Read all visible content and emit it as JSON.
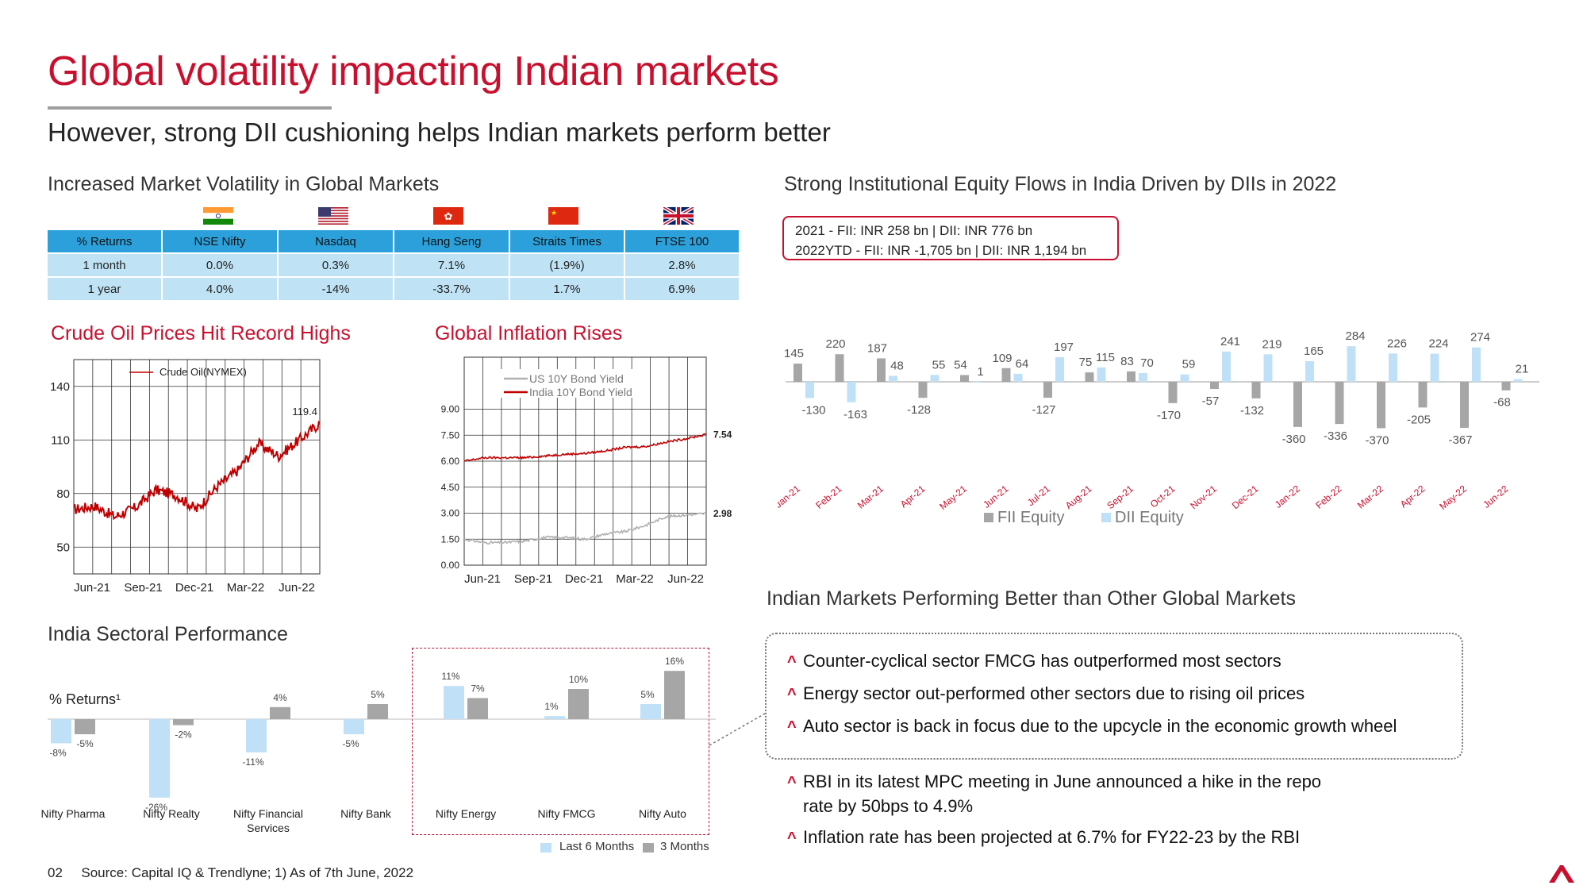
{
  "header": {
    "title": "Global volatility impacting Indian markets",
    "subtitle": "However, strong DII cushioning helps Indian markets perform better"
  },
  "volatility": {
    "heading": "Increased Market Volatility in Global Markets",
    "columns": [
      "% Returns",
      "NSE Nifty",
      "Nasdaq",
      "Hang Seng",
      "Straits Times",
      "FTSE 100"
    ],
    "flags": [
      "india-flag-icon",
      "us-flag-icon",
      "hong-kong-flag-icon",
      "china-flag-icon",
      "uk-flag-icon"
    ],
    "rows": [
      [
        "1 month",
        "0.0%",
        "0.3%",
        "7.1%",
        "(1.9%)",
        "2.8%"
      ],
      [
        "1 year",
        "4.0%",
        "-14%",
        "-33.7%",
        "1.7%",
        "6.9%"
      ]
    ]
  },
  "crude": {
    "heading": "Crude Oil Prices Hit Record Highs",
    "legend": "Crude Oil(NYMEX)",
    "end_label": "119.4",
    "yticks": [
      "140",
      "110",
      "80",
      "50"
    ],
    "xticks": [
      "Jun-21",
      "Sep-21",
      "Dec-21",
      "Mar-22",
      "Jun-22"
    ],
    "color": "#c00000"
  },
  "inflation": {
    "heading": "Global Inflation Rises",
    "legend": [
      "US 10Y Bond Yield",
      "India 10Y Bond Yield"
    ],
    "yticks": [
      "9.00",
      "7.50",
      "6.00",
      "4.50",
      "3.00",
      "1.50",
      "0.00"
    ],
    "xticks": [
      "Jun-21",
      "Sep-21",
      "Dec-21",
      "Mar-22",
      "Jun-22"
    ],
    "india_end": "7.54",
    "us_end": "2.98"
  },
  "flows": {
    "heading": "Strong Institutional Equity Flows in India Driven by DIIs in 2022",
    "box_line1": "2021 - FII: INR 258 bn | DII: INR 776 bn",
    "box_line2": "2022YTD - FII: INR -1,705 bn | DII: INR 1,194 bn",
    "legend_fii": "FII Equity",
    "legend_dii": "DII Equity",
    "fii_color": "#a6a6a6",
    "dii_color": "#bfe0f7"
  },
  "sectoral": {
    "heading": "India Sectoral Performance",
    "returns_label": "% Returns¹",
    "legend_6m": "Last 6 Months",
    "legend_3m": "3 Months"
  },
  "markets": {
    "heading": "Indian Markets Performing Better than Other Global Markets",
    "boxed_bullets": [
      "Counter-cyclical sector FMCG has outperformed most sectors",
      "Energy sector out-performed other sectors due to rising oil prices",
      "Auto sector is back in focus due to the upcycle in the economic growth wheel"
    ],
    "bullets": [
      {
        "line1": "RBI in its latest MPC meeting in June announced a hike in the repo",
        "line2": "rate by 50bps to 4.9%"
      },
      {
        "line1": "Inflation rate has been projected at 6.7% for FY22-23 by the RBI",
        "line2": ""
      }
    ]
  },
  "footer": {
    "page": "02",
    "source": "Source: Capital IQ & Trendlyne; 1) As of 7th June, 2022"
  },
  "chart_data": [
    {
      "type": "bar",
      "title": "Strong Institutional Equity Flows in India Driven by DIIs in 2022",
      "categories": [
        "Jan-21",
        "Feb-21",
        "Mar-21",
        "Apr-21",
        "May-21",
        "Jun-21",
        "Jul-21",
        "Aug-21",
        "Sep-21",
        "Oct-21",
        "Nov-21",
        "Dec-21",
        "Jan-22",
        "Feb-22",
        "Mar-22",
        "Apr-22",
        "May-22",
        "Jun-22"
      ],
      "series": [
        {
          "name": "FII Equity",
          "values": [
            145,
            220,
            187,
            -128,
            54,
            109,
            -127,
            75,
            83,
            -170,
            -57,
            -132,
            -360,
            -336,
            -370,
            -205,
            -367,
            -68
          ]
        },
        {
          "name": "DII Equity",
          "values": [
            -130,
            -163,
            48,
            55,
            1,
            64,
            197,
            115,
            70,
            59,
            241,
            219,
            165,
            284,
            226,
            224,
            274,
            21
          ]
        }
      ],
      "legend": "bottom"
    },
    {
      "type": "bar",
      "title": "India Sectoral Performance",
      "ylabel": "% Returns¹",
      "categories": [
        "Nifty Pharma",
        "Nifty Realty",
        "Nifty Financial Services",
        "Nifty Bank",
        "Nifty Energy",
        "Nifty FMCG",
        "Nifty Auto"
      ],
      "series": [
        {
          "name": "Last 6 Months",
          "values": [
            -8,
            -26,
            -11,
            -5,
            11,
            1,
            5
          ]
        },
        {
          "name": "3 Months",
          "values": [
            -5,
            -2,
            4,
            5,
            7,
            10,
            16
          ]
        }
      ],
      "labels_6m": [
        "-8%",
        "-26%",
        "-11%",
        "-5%",
        "11%",
        "1%",
        "5%"
      ],
      "labels_3m": [
        "-5%",
        "-2%",
        "4%",
        "5%",
        "7%",
        "10%",
        "16%"
      ],
      "highlighted_categories": [
        "Nifty Energy",
        "Nifty FMCG",
        "Nifty Auto"
      ],
      "legend": "bottom-right"
    },
    {
      "type": "line",
      "title": "Crude Oil Prices Hit Record Highs",
      "series": [
        {
          "name": "Crude Oil(NYMEX)",
          "x": [
            "Jun-21",
            "Jul-21",
            "Aug-21",
            "Sep-21",
            "Oct-21",
            "Nov-21",
            "Dec-21",
            "Jan-22",
            "Feb-22",
            "Mar-22",
            "Apr-22",
            "May-22",
            "Jun-22"
          ],
          "values": [
            71,
            73,
            67,
            72,
            82,
            79,
            71,
            84,
            93,
            108,
            101,
            110,
            119.4
          ]
        }
      ],
      "ylim": [
        35,
        155
      ],
      "yticks": [
        50,
        80,
        110,
        140
      ],
      "grid": true
    },
    {
      "type": "line",
      "title": "Global Inflation Rises",
      "series": [
        {
          "name": "US 10Y Bond Yield",
          "x": [
            "Jun-21",
            "Jul-21",
            "Aug-21",
            "Sep-21",
            "Oct-21",
            "Nov-21",
            "Dec-21",
            "Jan-22",
            "Feb-22",
            "Mar-22",
            "Apr-22",
            "May-22",
            "Jun-22"
          ],
          "values": [
            1.5,
            1.3,
            1.3,
            1.4,
            1.6,
            1.6,
            1.5,
            1.8,
            1.95,
            2.3,
            2.8,
            2.9,
            2.98
          ]
        },
        {
          "name": "India 10Y Bond Yield",
          "x": [
            "Jun-21",
            "Jul-21",
            "Aug-21",
            "Sep-21",
            "Oct-21",
            "Nov-21",
            "Dec-21",
            "Jan-22",
            "Feb-22",
            "Mar-22",
            "Apr-22",
            "May-22",
            "Jun-22"
          ],
          "values": [
            6.0,
            6.2,
            6.2,
            6.2,
            6.3,
            6.4,
            6.45,
            6.6,
            6.8,
            6.85,
            7.1,
            7.3,
            7.54
          ]
        }
      ],
      "ylim": [
        0,
        12
      ],
      "yticks": [
        0,
        1.5,
        3,
        4.5,
        6,
        7.5,
        9
      ],
      "grid": true
    }
  ]
}
